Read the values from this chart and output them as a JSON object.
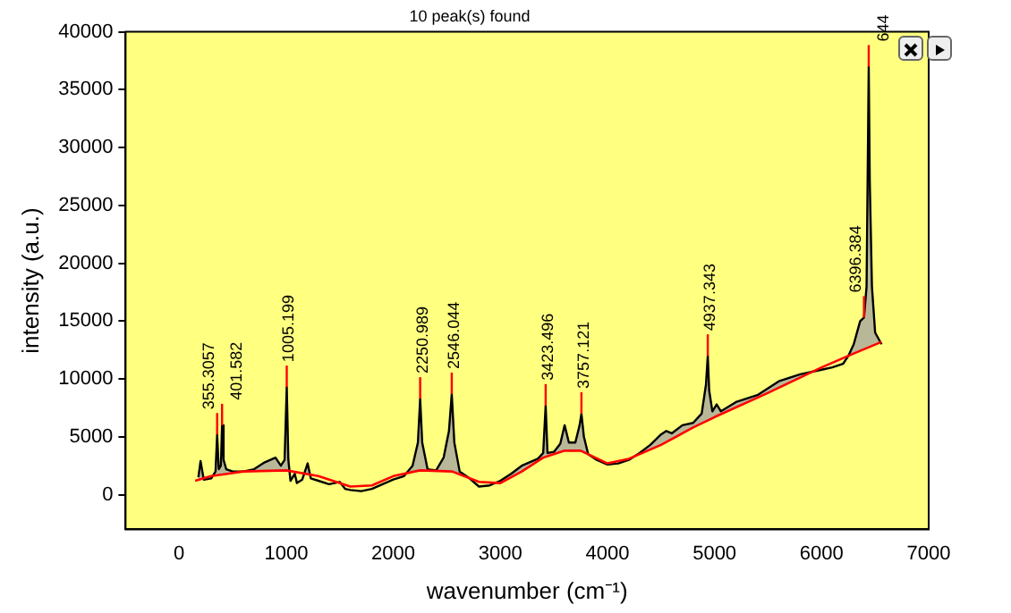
{
  "chart_data": {
    "type": "line",
    "title": "10 peak(s) found",
    "xlabel": "wavenumber (cm⁻¹)",
    "ylabel": "intensity (a.u.)",
    "xlim": [
      -500,
      7000
    ],
    "xticks": [
      0,
      1000,
      2000,
      3000,
      4000,
      5000,
      6000,
      7000
    ],
    "ylim": [
      -3000,
      40000
    ],
    "yticks": [
      0,
      5000,
      10000,
      15000,
      20000,
      25000,
      30000,
      35000,
      40000
    ],
    "grid": false,
    "legend": false,
    "marker": "none",
    "line_style": "solid",
    "series": [
      {
        "type": "area",
        "color": "#000000",
        "x": [
          180,
          200,
          230,
          300,
          340,
          355,
          370,
          390,
          401,
          415,
          440,
          500,
          600,
          700,
          800,
          900,
          950,
          985,
          1005,
          1020,
          1040,
          1080,
          1100,
          1150,
          1200,
          1230,
          1300,
          1400,
          1500,
          1550,
          1600,
          1700,
          1800,
          1900,
          2000,
          2100,
          2180,
          2230,
          2251,
          2270,
          2320,
          2400,
          2470,
          2520,
          2546,
          2570,
          2620,
          2700,
          2800,
          2900,
          3000,
          3100,
          3200,
          3350,
          3400,
          3423,
          3440,
          3500,
          3560,
          3600,
          3640,
          3700,
          3740,
          3757,
          3780,
          3820,
          3900,
          4000,
          4100,
          4200,
          4300,
          4400,
          4500,
          4550,
          4600,
          4700,
          4800,
          4880,
          4920,
          4937,
          4950,
          4980,
          5020,
          5060,
          5200,
          5400,
          5600,
          5800,
          6000,
          6100,
          6200,
          6250,
          6300,
          6360,
          6396,
          6420,
          6440,
          6450,
          6470,
          6500,
          6530,
          6560
        ],
        "values": [
          1500,
          2900,
          1300,
          1400,
          2000,
          5200,
          2200,
          2500,
          6000,
          3000,
          2200,
          2000,
          2000,
          2200,
          2800,
          3200,
          2500,
          3000,
          9300,
          3000,
          1200,
          1800,
          1000,
          1300,
          2700,
          1400,
          1200,
          900,
          1100,
          500,
          400,
          300,
          500,
          900,
          1300,
          1600,
          2500,
          4500,
          8300,
          4500,
          2200,
          2100,
          3200,
          5500,
          8700,
          4500,
          2000,
          1500,
          700,
          800,
          1200,
          1800,
          2500,
          3100,
          3600,
          7700,
          3600,
          3700,
          4400,
          6000,
          4500,
          4500,
          6000,
          7000,
          5000,
          3500,
          3000,
          2600,
          2700,
          3000,
          3600,
          4300,
          5200,
          5500,
          5300,
          6000,
          6200,
          7000,
          9500,
          12000,
          9000,
          7200,
          7800,
          7200,
          8000,
          8600,
          9800,
          10400,
          10800,
          11000,
          11300,
          12000,
          13000,
          15000,
          15300,
          18000,
          37000,
          27000,
          18000,
          14000,
          13500,
          13000
        ]
      },
      {
        "color": "#ff0000",
        "x": [
          150,
          300,
          600,
          1000,
          1300,
          1600,
          1800,
          2000,
          2250,
          2550,
          2800,
          3000,
          3200,
          3400,
          3600,
          3750,
          4000,
          4200,
          4500,
          4800,
          5000,
          5500,
          6000,
          6300,
          6560
        ],
        "values": [
          1200,
          1600,
          2000,
          2100,
          1600,
          700,
          800,
          1600,
          2100,
          2000,
          1100,
          1000,
          2000,
          3200,
          3800,
          3800,
          2700,
          3100,
          4300,
          5800,
          6700,
          8800,
          11000,
          12200,
          13200
        ]
      }
    ],
    "annotations": [
      {
        "text": "355.3057",
        "x": 355,
        "y": 5200
      },
      {
        "text": "401.582",
        "x": 401,
        "y": 6000
      },
      {
        "text": "1005.199",
        "x": 1005,
        "y": 9300
      },
      {
        "text": "2250.989",
        "x": 2251,
        "y": 8300
      },
      {
        "text": "2546.044",
        "x": 2546,
        "y": 8700
      },
      {
        "text": "3423.496",
        "x": 3423,
        "y": 7700
      },
      {
        "text": "3757.121",
        "x": 3757,
        "y": 7000
      },
      {
        "text": "4937.343",
        "x": 4937,
        "y": 12000
      },
      {
        "text": "6396.384",
        "x": 6396,
        "y": 15300
      },
      {
        "text": "644",
        "x": 6440,
        "y": 37000
      }
    ]
  }
}
